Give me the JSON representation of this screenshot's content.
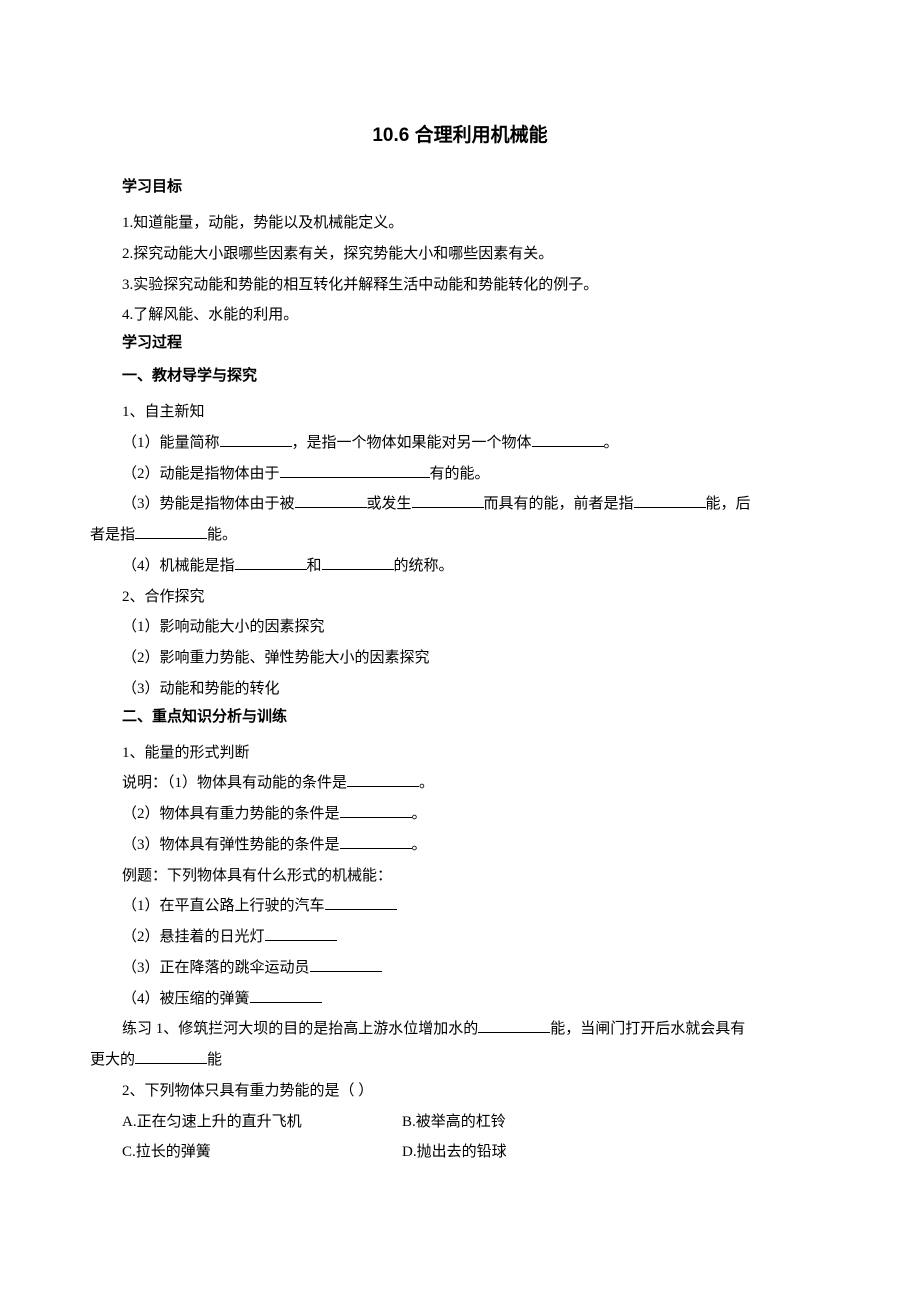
{
  "title": "10.6 合理利用机械能",
  "headings": {
    "objective": "学习目标",
    "process": "学习过程",
    "section1": "一、教材导学与探究",
    "section2": "二、重点知识分析与训练"
  },
  "objectives": {
    "o1": "1.知道能量，动能，势能以及机械能定义。",
    "o2": "2.探究动能大小跟哪些因素有关，探究势能大小和哪些因素有关。",
    "o3": "3.实验探究动能和势能的相互转化并解释生活中动能和势能转化的例子。",
    "o4": "4.了解风能、水能的利用。"
  },
  "sec1": {
    "sub1": "1、自主新知",
    "p1a": "（1）能量简称",
    "p1b": "，是指一个物体如果能对另一个物体",
    "p1c": "。",
    "p2a": "（2）动能是指物体由于",
    "p2b": "有的能。",
    "p3a": "（3）势能是指物体由于被",
    "p3b": "或发生",
    "p3c": "而具有的能，前者是指",
    "p3d": "能，后",
    "p3e": "者是指",
    "p3f": "能。",
    "p4a": "（4）机械能是指",
    "p4b": "和",
    "p4c": "的统称。",
    "sub2": "2、合作探究",
    "c1": "（1）影响动能大小的因素探究",
    "c2": "（2）影响重力势能、弹性势能大小的因素探究",
    "c3": "（3）动能和势能的转化"
  },
  "sec2": {
    "sub1": "1、能量的形式判断",
    "s1a": "说明：（1）物体具有动能的条件是",
    "s1b": "。",
    "s2a": "（2）物体具有重力势能的条件是",
    "s2b": "。",
    "s3a": "（3）物体具有弹性势能的条件是",
    "s3b": "。",
    "ex": "例题：下列物体具有什么形式的机械能：",
    "e1": "（1）在平直公路上行驶的汽车",
    "e2": "（2）悬挂着的日光灯",
    "e3": "（3）正在降落的跳伞运动员",
    "e4": "（4）被压缩的弹簧",
    "pr1a": "练习 1、修筑拦河大坝的目的是抬高上游水位增加水的",
    "pr1b": "能，当闸门打开后水就会具有",
    "pr1c": "更大的",
    "pr1d": "能",
    "q2": "2、下列物体只具有重力势能的是（   ）",
    "optA": "A.正在匀速上升的直升飞机",
    "optB": "B.被举高的杠铃",
    "optC": "C.拉长的弹簧",
    "optD": "D.抛出去的铅球"
  },
  "style": {
    "background": "#ffffff",
    "text_color": "#000000",
    "title_fontsize": 19,
    "body_fontsize": 15,
    "line_height": 2.05
  }
}
